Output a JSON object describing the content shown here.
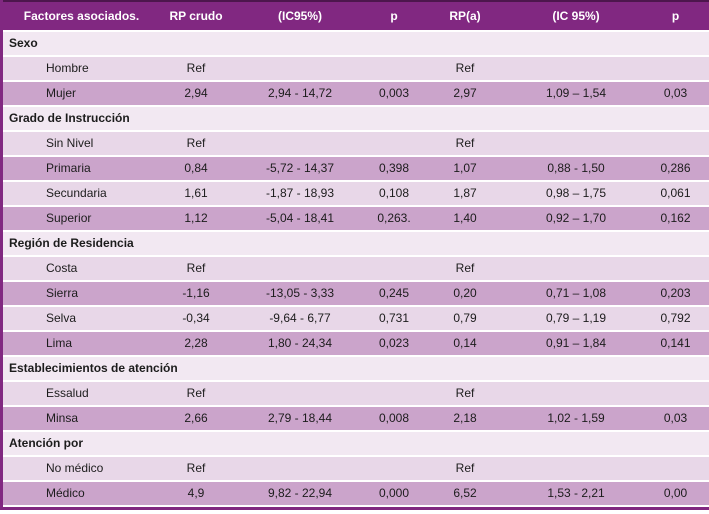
{
  "colors": {
    "header_bg": "#812881",
    "header_top": "#4d164d",
    "header_text": "#ffffff",
    "section_bg": "#f2e8f2",
    "row_light": "#e8d7e8",
    "row_dark": "#cba4cb",
    "border": "#812881",
    "text": "#1c1c1c"
  },
  "chart_data": {
    "type": "table",
    "columns": [
      "Factores asociados.",
      "RP crudo",
      "(IC95%)",
      "p",
      "RP(a)",
      "(IC 95%)",
      "p"
    ],
    "sections": [
      {
        "title": "Sexo",
        "rows": [
          {
            "cells": [
              "Hombre",
              "Ref",
              "",
              "",
              "Ref",
              "",
              ""
            ]
          },
          {
            "cells": [
              "Mujer",
              "2,94",
              "2,94 - 14,72",
              "0,003",
              "2,97",
              "1,09 – 1,54",
              "0,03"
            ]
          }
        ]
      },
      {
        "title": "Grado de Instrucción",
        "rows": [
          {
            "cells": [
              "Sin Nivel",
              "Ref",
              "",
              "",
              "Ref",
              "",
              ""
            ]
          },
          {
            "cells": [
              "Primaria",
              "0,84",
              "-5,72 - 14,37",
              "0,398",
              "1,07",
              "0,88 - 1,50",
              "0,286"
            ]
          },
          {
            "cells": [
              "Secundaria",
              "1,61",
              "-1,87 - 18,93",
              "0,108",
              "1,87",
              "0,98 – 1,75",
              "0,061"
            ]
          },
          {
            "cells": [
              "Superior",
              "1,12",
              "-5,04 - 18,41",
              "0,263.",
              "1,40",
              "0,92 – 1,70",
              "0,162"
            ]
          }
        ]
      },
      {
        "title": "Región de Residencia",
        "rows": [
          {
            "cells": [
              "Costa",
              "Ref",
              "",
              "",
              "Ref",
              "",
              ""
            ]
          },
          {
            "cells": [
              "Sierra",
              "-1,16",
              "-13,05 - 3,33",
              "0,245",
              "0,20",
              "0,71 – 1,08",
              "0,203"
            ]
          },
          {
            "cells": [
              "Selva",
              "-0,34",
              "-9,64 - 6,77",
              "0,731",
              "0,79",
              "0,79 – 1,19",
              "0,792"
            ]
          },
          {
            "cells": [
              "Lima",
              "2,28",
              "1,80 - 24,34",
              "0,023",
              "0,14",
              "0,91 – 1,84",
              "0,141"
            ]
          }
        ]
      },
      {
        "title": "Establecimientos de atención",
        "rows": [
          {
            "cells": [
              "Essalud",
              "Ref",
              "",
              "",
              "Ref",
              "",
              ""
            ]
          },
          {
            "cells": [
              "Minsa",
              "2,66",
              "2,79 - 18,44",
              "0,008",
              "2,18",
              "1,02 - 1,59",
              "0,03"
            ]
          }
        ]
      },
      {
        "title": "Atención por",
        "rows": [
          {
            "cells": [
              "No médico",
              "Ref",
              "",
              "",
              "Ref",
              "",
              ""
            ]
          },
          {
            "cells": [
              "Médico",
              "4,9",
              "9,82 - 22,94",
              "0,000",
              "6,52",
              "1,53 - 2,21",
              "0,00"
            ]
          }
        ]
      }
    ]
  }
}
